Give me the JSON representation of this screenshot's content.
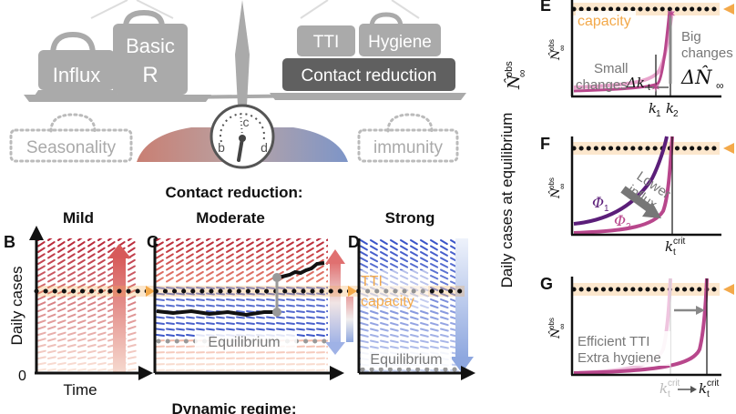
{
  "scale": {
    "left_weights": {
      "influx": "Influx",
      "basic_r_line1": "Basic",
      "basic_r_line2": "R"
    },
    "right_weights": {
      "tti": "TTI",
      "hygiene": "Hygiene",
      "contact_reduction": "Contact reduction"
    },
    "left_ghost": "Seasonality",
    "right_ghost": "immunity",
    "dial_labels": {
      "b": "b",
      "c": "c",
      "d": "d"
    }
  },
  "regime_header": "Contact reduction:",
  "footer": "Dynamic regime:",
  "panels": {
    "B": {
      "letter": "B",
      "title": "Mild",
      "y_axis": "Daily cases",
      "x_axis": "Time",
      "zero": "0"
    },
    "C": {
      "letter": "C",
      "title": "Moderate",
      "equilibrium": "Equilibrium"
    },
    "D": {
      "letter": "D",
      "title": "Strong",
      "tti_line1": "TTI",
      "tti_line2": "capacity",
      "equilibrium": "Equilibrium"
    }
  },
  "right_axis_label": "Daily cases at equilibrium",
  "right_axis_symbol": "N̂",
  "right_axis_sup": "obs",
  "right_axis_sub": "∞",
  "panel_E": {
    "letter": "E",
    "capacity": "capacity",
    "big_line1": "Big",
    "big_line2": "changes",
    "big_symbol": "ΔN̂",
    "big_sub": "∞",
    "small_line1": "Small",
    "small_line2": "changes",
    "small_symbol": "Δk",
    "small_sub": "t",
    "k1": "k",
    "k1_sub": "1",
    "k2": "k",
    "k2_sub": "2"
  },
  "panel_F": {
    "letter": "F",
    "lower_line1": "Lower",
    "lower_line2": "influx",
    "phi1": "Φ",
    "phi1_sub": "1",
    "phi2": "Φ",
    "phi2_sub": "2",
    "kcrit": "k",
    "kcrit_sup": "crit",
    "kcrit_sub": "t"
  },
  "panel_G": {
    "letter": "G",
    "line1": "Efficient TTI",
    "line2": "Extra hygiene",
    "kcrit_a": "k",
    "kcrit_b": "k",
    "kcrit_sup": "crit",
    "kcrit_sub": "t"
  },
  "colors": {
    "weight_light": "#aaaaaa",
    "weight_dark": "#606060",
    "capacity": "#f3a94a",
    "red": "#b82436",
    "blue": "#3b55c8",
    "purple": "#5b1e79",
    "magenta": "#b8478c"
  }
}
